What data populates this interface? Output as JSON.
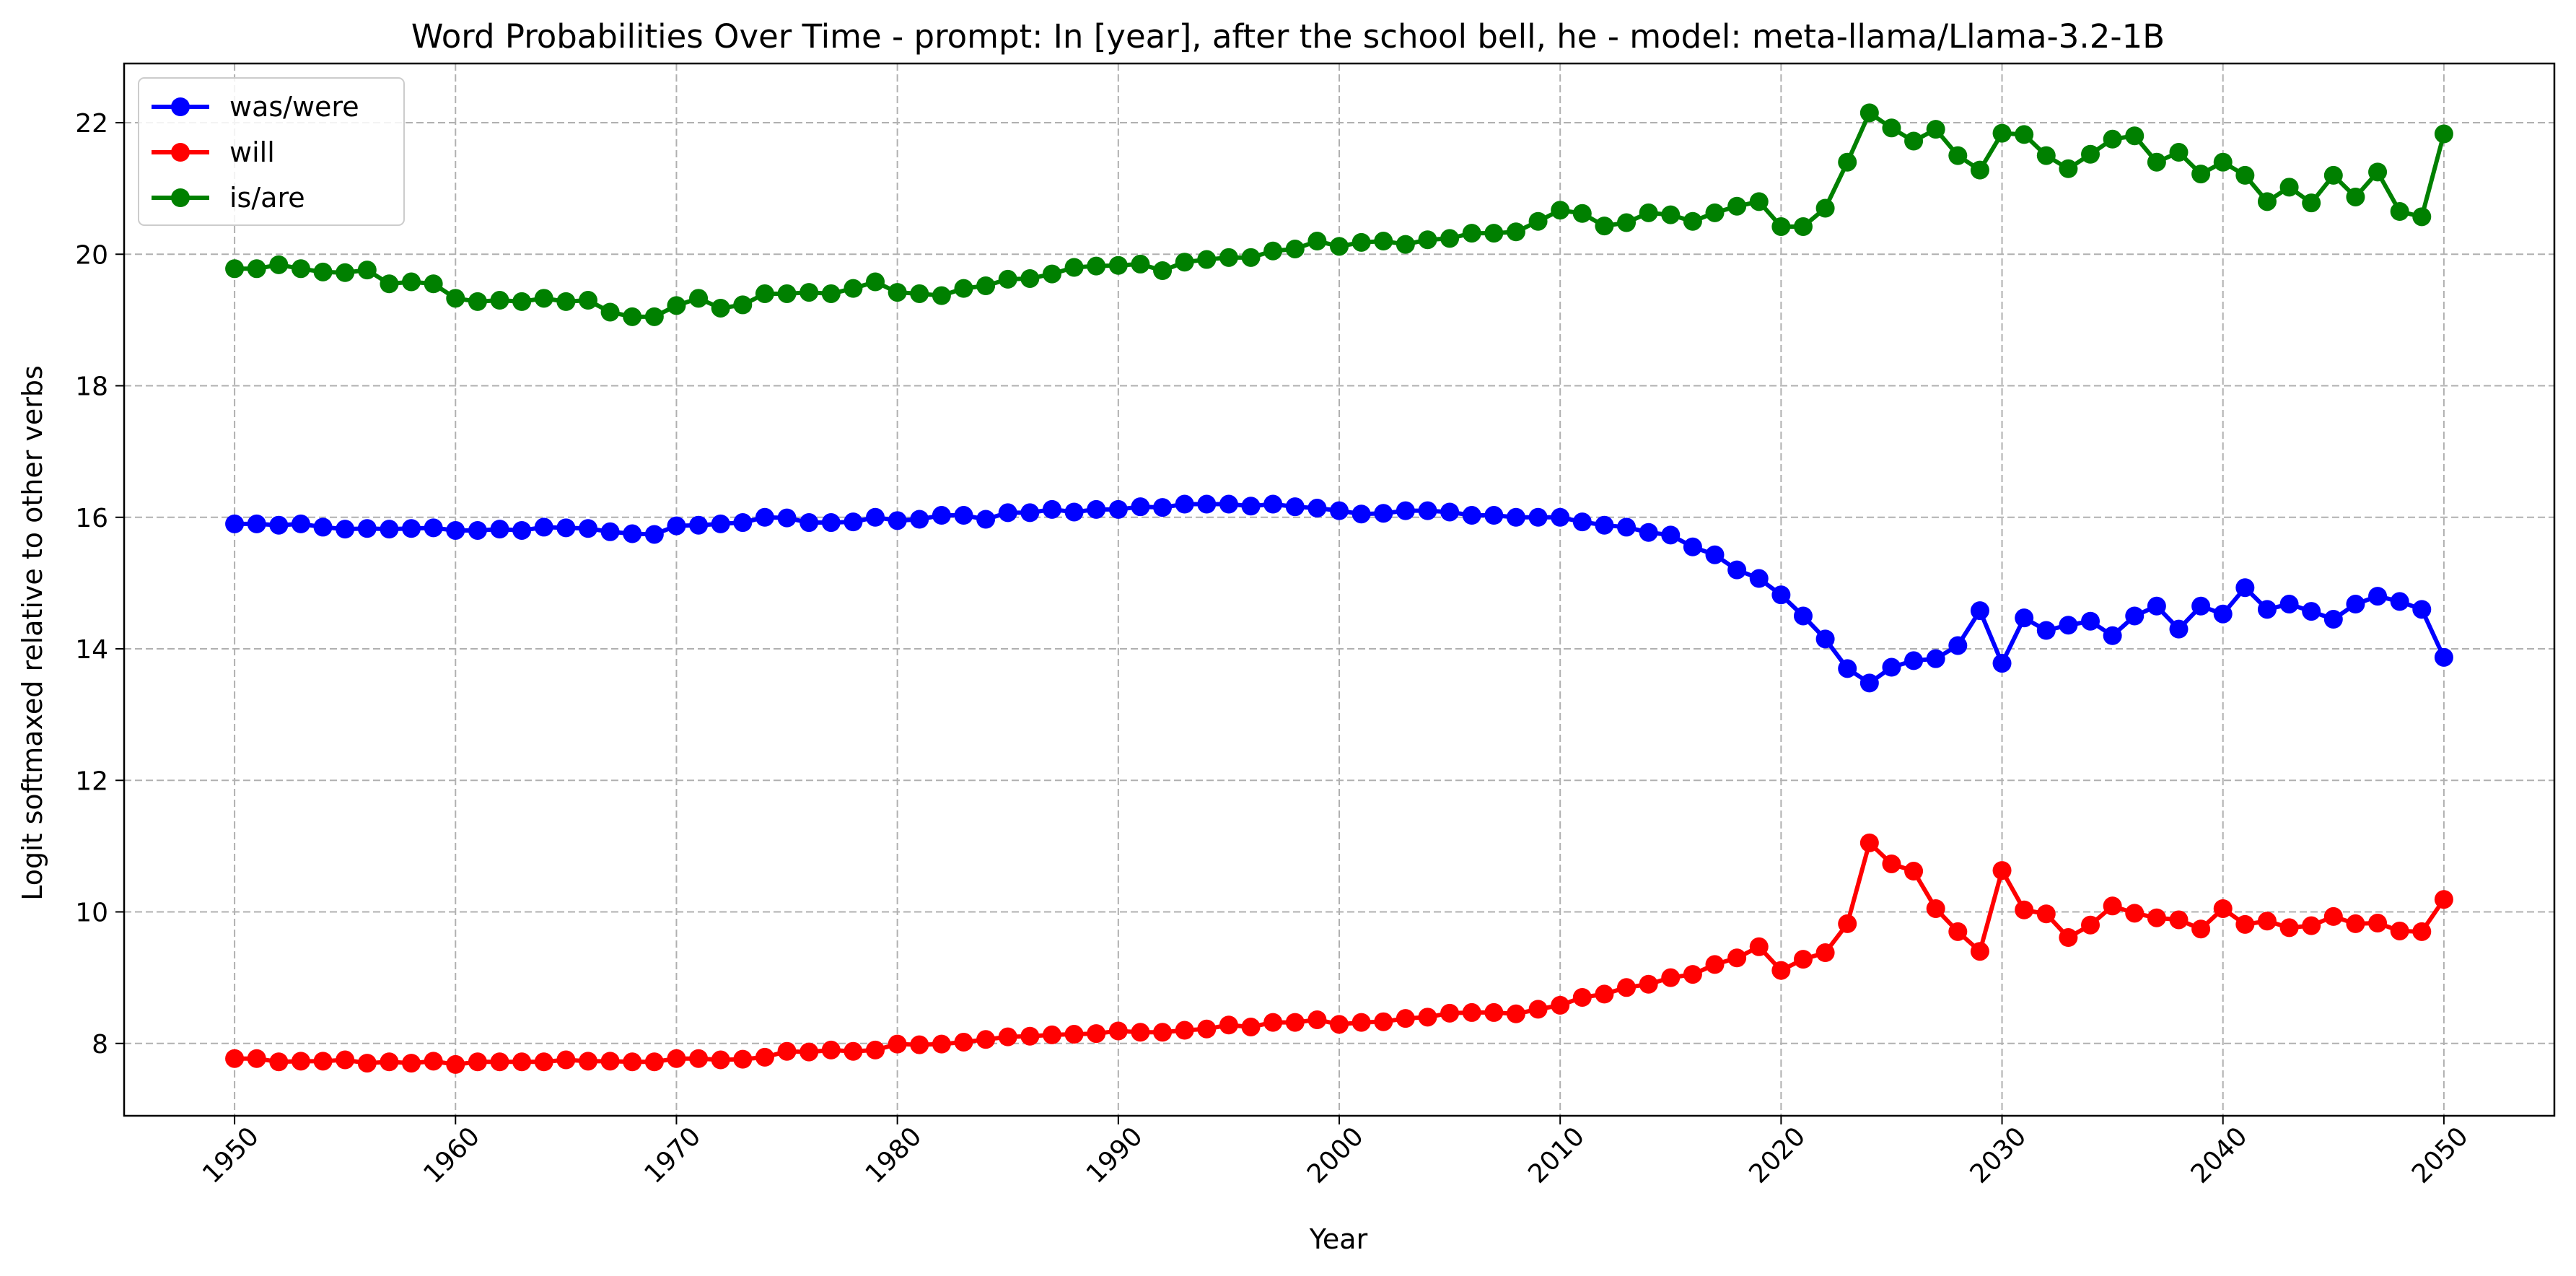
{
  "chart_data": {
    "type": "line",
    "title": "Word Probabilities Over Time - prompt: In [year], after the school bell, he - model: meta-llama/Llama-3.2-1B",
    "xlabel": "Year",
    "ylabel": "Logit softmaxed relative to other verbs",
    "xlim": [
      1945,
      2055
    ],
    "ylim": [
      6.9,
      22.9
    ],
    "xticks": [
      1950,
      1960,
      1970,
      1980,
      1990,
      2000,
      2010,
      2020,
      2030,
      2040,
      2050
    ],
    "yticks": [
      8,
      10,
      12,
      14,
      16,
      18,
      20,
      22
    ],
    "grid": true,
    "legend_position": "top-left",
    "x_start": 1950,
    "x_end": 2050,
    "series": [
      {
        "name": "was/were",
        "color": "#0000ff",
        "values": [
          15.9,
          15.9,
          15.88,
          15.9,
          15.85,
          15.82,
          15.83,
          15.82,
          15.83,
          15.84,
          15.8,
          15.8,
          15.82,
          15.8,
          15.85,
          15.84,
          15.83,
          15.78,
          15.75,
          15.74,
          15.87,
          15.88,
          15.9,
          15.92,
          16.0,
          15.99,
          15.92,
          15.92,
          15.93,
          16.0,
          15.95,
          15.97,
          16.03,
          16.03,
          15.97,
          16.07,
          16.07,
          16.12,
          16.08,
          16.12,
          16.12,
          16.16,
          16.15,
          16.2,
          16.2,
          16.2,
          16.17,
          16.2,
          16.16,
          16.14,
          16.1,
          16.05,
          16.06,
          16.1,
          16.1,
          16.08,
          16.03,
          16.03,
          16.0,
          16.0,
          16.0,
          15.93,
          15.88,
          15.85,
          15.77,
          15.73,
          15.55,
          15.43,
          15.2,
          15.07,
          14.82,
          14.5,
          14.15,
          13.7,
          13.48,
          13.72,
          13.82,
          13.85,
          14.05,
          14.58,
          13.78,
          14.47,
          14.28,
          14.36,
          14.42,
          14.2,
          14.5,
          14.65,
          14.3,
          14.65,
          14.53,
          14.93,
          14.6,
          14.68,
          14.57,
          14.45,
          14.68,
          14.8,
          14.72,
          14.6,
          13.87
        ]
      },
      {
        "name": "will",
        "color": "#ff0000",
        "values": [
          7.77,
          7.77,
          7.72,
          7.73,
          7.73,
          7.75,
          7.7,
          7.72,
          7.7,
          7.73,
          7.68,
          7.72,
          7.72,
          7.72,
          7.72,
          7.75,
          7.73,
          7.73,
          7.72,
          7.72,
          7.77,
          7.77,
          7.75,
          7.76,
          7.79,
          7.88,
          7.87,
          7.9,
          7.88,
          7.9,
          7.99,
          7.98,
          7.99,
          8.02,
          8.06,
          8.1,
          8.11,
          8.13,
          8.14,
          8.15,
          8.19,
          8.17,
          8.17,
          8.2,
          8.22,
          8.28,
          8.25,
          8.32,
          8.32,
          8.36,
          8.29,
          8.32,
          8.33,
          8.38,
          8.4,
          8.46,
          8.47,
          8.47,
          8.45,
          8.52,
          8.58,
          8.7,
          8.75,
          8.85,
          8.9,
          9.0,
          9.05,
          9.2,
          9.3,
          9.47,
          9.11,
          9.28,
          9.38,
          9.82,
          11.05,
          10.73,
          10.62,
          10.05,
          9.7,
          9.4,
          10.63,
          10.03,
          9.97,
          9.61,
          9.8,
          10.09,
          9.98,
          9.91,
          9.88,
          9.74,
          10.05,
          9.81,
          9.86,
          9.76,
          9.79,
          9.93,
          9.82,
          9.83,
          9.71,
          9.7,
          10.19
        ]
      },
      {
        "name": "is/are",
        "color": "#008000",
        "values": [
          19.78,
          19.78,
          19.84,
          19.78,
          19.73,
          19.72,
          19.76,
          19.55,
          19.58,
          19.55,
          19.33,
          19.28,
          19.3,
          19.28,
          19.33,
          19.28,
          19.3,
          19.12,
          19.05,
          19.05,
          19.22,
          19.33,
          19.18,
          19.23,
          19.4,
          19.4,
          19.42,
          19.4,
          19.48,
          19.58,
          19.42,
          19.4,
          19.37,
          19.48,
          19.52,
          19.62,
          19.63,
          19.7,
          19.8,
          19.82,
          19.83,
          19.85,
          19.75,
          19.88,
          19.92,
          19.95,
          19.95,
          20.05,
          20.08,
          20.2,
          20.12,
          20.18,
          20.2,
          20.15,
          20.22,
          20.24,
          20.32,
          20.32,
          20.34,
          20.5,
          20.67,
          20.62,
          20.43,
          20.48,
          20.63,
          20.6,
          20.5,
          20.63,
          20.73,
          20.8,
          20.42,
          20.42,
          20.7,
          21.4,
          22.15,
          21.92,
          21.72,
          21.9,
          21.5,
          21.28,
          21.84,
          21.82,
          21.5,
          21.3,
          21.52,
          21.75,
          21.8,
          21.4,
          21.55,
          21.22,
          21.4,
          21.2,
          20.8,
          21.02,
          20.78,
          21.2,
          20.87,
          21.25,
          20.65,
          20.57,
          21.83
        ]
      }
    ]
  }
}
